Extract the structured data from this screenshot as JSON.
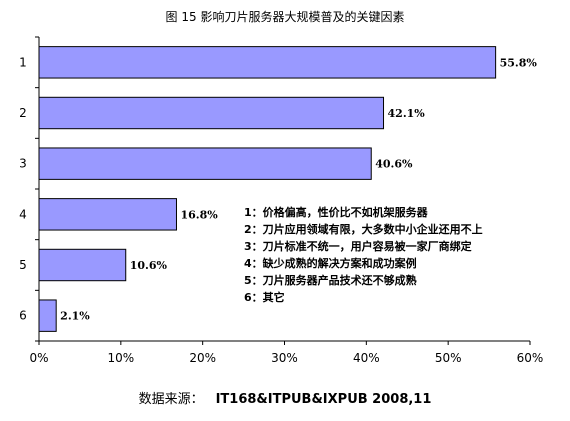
{
  "chart_data": {
    "type": "bar",
    "orientation": "horizontal",
    "title": "图 15   影响刀片服务器大规模普及的关键因素",
    "categories": [
      "1",
      "2",
      "3",
      "4",
      "5",
      "6"
    ],
    "values": [
      55.8,
      42.1,
      40.6,
      16.8,
      10.6,
      2.1
    ],
    "value_labels": [
      "55.8%",
      "42.1%",
      "40.6%",
      "16.8%",
      "10.6%",
      "2.1%"
    ],
    "xlim": [
      0,
      60
    ],
    "xticks": [
      "0%",
      "10%",
      "20%",
      "30%",
      "40%",
      "50%",
      "60%"
    ],
    "grid": false,
    "bar_color": "#9999ff",
    "bar_border": "#000000",
    "legend": [
      "1：价格偏高，性价比不如机架服务器",
      "2：刀片应用领域有限，大多数中小企业还用不上",
      "3：刀片标准不统一，用户容易被一家厂商绑定",
      "4：缺少成熟的解决方案和成功案例",
      "5：刀片服务器产品技术还不够成熟",
      "6：其它"
    ],
    "source_label": "数据来源：",
    "source_value": "IT168&ITPUB&IXPUB 2008,11"
  }
}
